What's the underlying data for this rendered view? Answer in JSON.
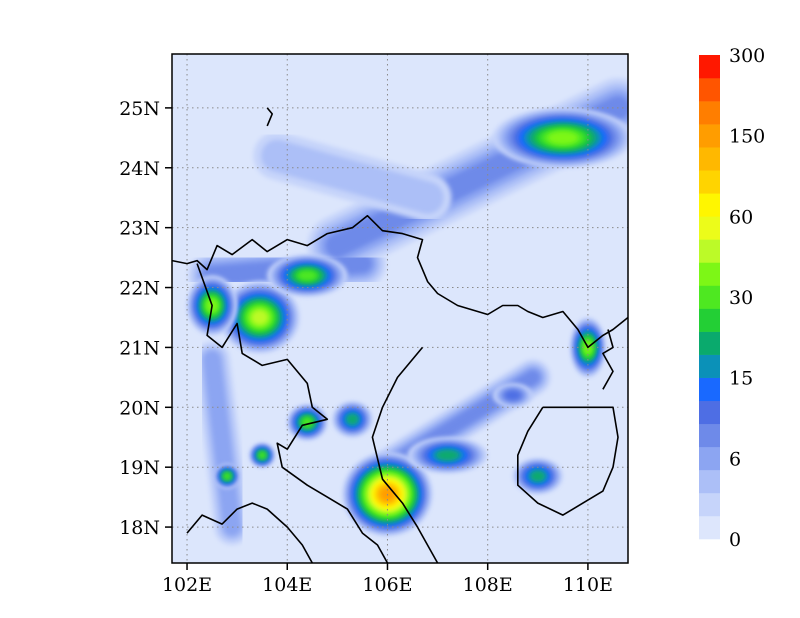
{
  "map": {
    "lon_range": [
      101.7,
      110.8
    ],
    "lat_range": [
      17.4,
      25.9
    ],
    "lon_ticks": [
      {
        "value": 102,
        "label": "102E"
      },
      {
        "value": 104,
        "label": "104E"
      },
      {
        "value": 106,
        "label": "106E"
      },
      {
        "value": 108,
        "label": "108E"
      },
      {
        "value": 110,
        "label": "110E"
      }
    ],
    "lat_ticks": [
      {
        "value": 18,
        "label": "18N"
      },
      {
        "value": 19,
        "label": "19N"
      },
      {
        "value": 20,
        "label": "20N"
      },
      {
        "value": 21,
        "label": "21N"
      },
      {
        "value": 22,
        "label": "22N"
      },
      {
        "value": 23,
        "label": "23N"
      },
      {
        "value": 24,
        "label": "24N"
      },
      {
        "value": 25,
        "label": "25N"
      }
    ],
    "grid": true,
    "background_color": "#dce6fc",
    "field_type": "filled contour",
    "rain_cores": [
      {
        "lon": 106.0,
        "lat": 18.55,
        "value": 160,
        "rx": 0.9,
        "ry": 0.7
      },
      {
        "lon": 103.45,
        "lat": 21.5,
        "value": 55,
        "rx": 0.8,
        "ry": 0.6
      },
      {
        "lon": 102.5,
        "lat": 21.7,
        "value": 40,
        "rx": 0.5,
        "ry": 0.5
      },
      {
        "lon": 104.4,
        "lat": 22.2,
        "value": 30,
        "rx": 0.8,
        "ry": 0.35
      },
      {
        "lon": 109.5,
        "lat": 24.5,
        "value": 40,
        "rx": 1.4,
        "ry": 0.5
      },
      {
        "lon": 110.0,
        "lat": 21.0,
        "value": 40,
        "rx": 0.35,
        "ry": 0.5
      },
      {
        "lon": 104.4,
        "lat": 19.75,
        "value": 30,
        "rx": 0.4,
        "ry": 0.3
      },
      {
        "lon": 105.3,
        "lat": 19.8,
        "value": 25,
        "rx": 0.4,
        "ry": 0.3
      },
      {
        "lon": 103.5,
        "lat": 19.2,
        "value": 30,
        "rx": 0.25,
        "ry": 0.2
      },
      {
        "lon": 102.8,
        "lat": 18.85,
        "value": 30,
        "rx": 0.25,
        "ry": 0.2
      },
      {
        "lon": 107.2,
        "lat": 19.2,
        "value": 25,
        "rx": 0.8,
        "ry": 0.3
      },
      {
        "lon": 109.0,
        "lat": 18.85,
        "value": 25,
        "rx": 0.5,
        "ry": 0.3
      },
      {
        "lon": 108.5,
        "lat": 20.2,
        "value": 15,
        "rx": 0.4,
        "ry": 0.2
      }
    ],
    "rain_bands": [
      {
        "from": [
          105.0,
          22.7
        ],
        "to": [
          110.6,
          25.0
        ],
        "value": 12,
        "width": 1.0
      },
      {
        "from": [
          103.8,
          24.2
        ],
        "to": [
          106.8,
          23.5
        ],
        "value": 6,
        "width": 0.8
      },
      {
        "from": [
          102.5,
          20.8
        ],
        "to": [
          102.9,
          18.0
        ],
        "value": 10,
        "width": 0.6
      },
      {
        "from": [
          102.5,
          22.2
        ],
        "to": [
          105.5,
          22.4
        ],
        "value": 12,
        "width": 0.8
      },
      {
        "from": [
          106.0,
          19.0
        ],
        "to": [
          108.9,
          20.5
        ],
        "value": 12,
        "width": 0.6
      }
    ],
    "coastlines": [
      [
        [
          101.7,
          22.45
        ],
        [
          102.0,
          22.4
        ],
        [
          102.2,
          22.45
        ],
        [
          102.4,
          22.3
        ],
        [
          102.6,
          22.7
        ],
        [
          102.9,
          22.55
        ],
        [
          103.3,
          22.8
        ],
        [
          103.6,
          22.6
        ],
        [
          104.0,
          22.8
        ],
        [
          104.4,
          22.7
        ],
        [
          104.8,
          22.9
        ],
        [
          105.3,
          23.0
        ],
        [
          105.6,
          23.2
        ],
        [
          105.9,
          22.95
        ],
        [
          106.3,
          22.9
        ],
        [
          106.7,
          22.8
        ],
        [
          106.6,
          22.5
        ],
        [
          106.8,
          22.1
        ],
        [
          107.0,
          21.9
        ],
        [
          107.4,
          21.7
        ],
        [
          107.8,
          21.6
        ],
        [
          108.0,
          21.55
        ],
        [
          108.3,
          21.7
        ],
        [
          108.6,
          21.7
        ],
        [
          108.8,
          21.6
        ],
        [
          109.1,
          21.5
        ],
        [
          109.5,
          21.6
        ],
        [
          109.8,
          21.3
        ],
        [
          110.0,
          21.0
        ],
        [
          110.3,
          21.2
        ],
        [
          110.5,
          21.3
        ],
        [
          110.8,
          21.5
        ]
      ],
      [
        [
          106.7,
          21.0
        ],
        [
          106.2,
          20.5
        ],
        [
          105.9,
          20.0
        ],
        [
          105.7,
          19.5
        ],
        [
          105.9,
          18.8
        ],
        [
          106.3,
          18.4
        ],
        [
          106.6,
          18.0
        ],
        [
          107.0,
          17.4
        ]
      ],
      [
        [
          102.0,
          17.9
        ],
        [
          102.3,
          18.2
        ],
        [
          102.7,
          18.05
        ],
        [
          103.0,
          18.3
        ],
        [
          103.3,
          18.4
        ],
        [
          103.6,
          18.3
        ],
        [
          104.0,
          18.0
        ],
        [
          104.3,
          17.7
        ],
        [
          104.5,
          17.4
        ]
      ],
      [
        [
          102.2,
          22.4
        ],
        [
          102.5,
          21.7
        ],
        [
          102.4,
          21.2
        ],
        [
          102.7,
          21.0
        ],
        [
          103.0,
          21.4
        ],
        [
          103.1,
          20.9
        ],
        [
          103.5,
          20.7
        ],
        [
          104.0,
          20.8
        ],
        [
          104.4,
          20.4
        ],
        [
          104.5,
          20.0
        ],
        [
          104.8,
          19.8
        ],
        [
          104.3,
          19.7
        ],
        [
          104.0,
          19.3
        ],
        [
          103.8,
          19.4
        ],
        [
          103.9,
          19.0
        ],
        [
          104.4,
          18.7
        ],
        [
          104.8,
          18.5
        ],
        [
          105.2,
          18.3
        ],
        [
          105.5,
          17.9
        ],
        [
          105.8,
          17.7
        ],
        [
          106.0,
          17.4
        ]
      ],
      [
        [
          109.1,
          20.0
        ],
        [
          108.8,
          19.6
        ],
        [
          108.6,
          19.2
        ],
        [
          108.6,
          18.7
        ],
        [
          109.0,
          18.4
        ],
        [
          109.5,
          18.2
        ],
        [
          109.9,
          18.4
        ],
        [
          110.3,
          18.6
        ],
        [
          110.5,
          19.0
        ],
        [
          110.6,
          19.5
        ],
        [
          110.5,
          20.0
        ],
        [
          110.1,
          20.0
        ],
        [
          109.6,
          20.0
        ],
        [
          109.1,
          20.0
        ]
      ],
      [
        [
          110.4,
          21.3
        ],
        [
          110.5,
          21.0
        ],
        [
          110.3,
          20.9
        ],
        [
          110.5,
          20.6
        ],
        [
          110.3,
          20.3
        ]
      ],
      [
        [
          103.6,
          25.0
        ],
        [
          103.7,
          24.9
        ],
        [
          103.6,
          24.7
        ]
      ]
    ]
  },
  "colorbar": {
    "tick_labels": [
      "0",
      "6",
      "15",
      "30",
      "60",
      "150",
      "300"
    ],
    "levels": [
      0,
      3,
      6,
      9,
      12,
      15,
      18,
      21,
      24,
      27,
      30,
      40,
      50,
      60,
      80,
      100,
      120,
      150,
      200,
      250,
      300
    ],
    "colors": [
      "#dde6fc",
      "#c6d4fa",
      "#acbff7",
      "#8ca5f2",
      "#6e8ae9",
      "#4e6ee4",
      "#1969ff",
      "#0b91b8",
      "#0aaa6d",
      "#23cf35",
      "#4ee821",
      "#7df716",
      "#bcfa28",
      "#ecfc1a",
      "#fff600",
      "#ffd400",
      "#ffb800",
      "#ff9d00",
      "#ff7e00",
      "#ff5500",
      "#ff1800"
    ]
  }
}
